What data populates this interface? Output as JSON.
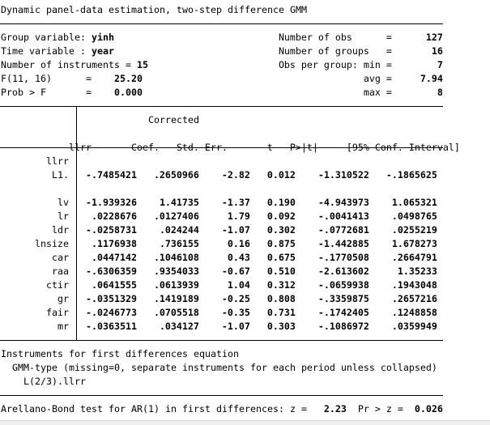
{
  "title": "Dynamic panel-data estimation, two-step difference GMM",
  "header_left": [
    {
      "label": "Group variable: ",
      "value": "yinh"
    },
    {
      "label": "Time variable : ",
      "value": "year"
    },
    {
      "label": "Number of instruments = ",
      "value": "15"
    },
    {
      "label": "F(11, 16)      =",
      "value": "25.20"
    },
    {
      "label": "Prob > F       =",
      "value": "0.000"
    }
  ],
  "header_right": [
    {
      "label": "Number of obs      =",
      "value": "127"
    },
    {
      "label": "Number of groups   =",
      "value": "16"
    },
    {
      "label": "Obs per group: min =",
      "value": "7"
    },
    {
      "label": "avg =",
      "value": "7.94"
    },
    {
      "label": "max =",
      "value": "8"
    }
  ],
  "table": {
    "header_top": "Corrected",
    "depvar": "llrr",
    "columns": [
      "Coef.",
      "Std. Err.",
      "t",
      "P>|t|",
      "[95% Conf. Interval]"
    ],
    "group_label": "llrr",
    "rows": [
      {
        "name": "L1.",
        "coef": "-.7485421",
        "se": ".2650966",
        "t": "-2.82",
        "p": "0.012",
        "lo": "-1.310522",
        "hi": "-.1865625"
      },
      {
        "name": "lv",
        "coef": "-1.939326",
        "se": "1.41735",
        "t": "-1.37",
        "p": "0.190",
        "lo": "-4.943973",
        "hi": "1.065321"
      },
      {
        "name": "lr",
        "coef": ".0228676",
        "se": ".0127406",
        "t": "1.79",
        "p": "0.092",
        "lo": "-.0041413",
        "hi": ".0498765"
      },
      {
        "name": "ldr",
        "coef": "-.0258731",
        "se": ".024244",
        "t": "-1.07",
        "p": "0.302",
        "lo": "-.0772681",
        "hi": ".0255219"
      },
      {
        "name": "lnsize",
        "coef": ".1176938",
        "se": ".736155",
        "t": "0.16",
        "p": "0.875",
        "lo": "-1.442885",
        "hi": "1.678273"
      },
      {
        "name": "car",
        "coef": ".0447142",
        "se": ".1046108",
        "t": "0.43",
        "p": "0.675",
        "lo": "-.1770508",
        "hi": ".2664791"
      },
      {
        "name": "raa",
        "coef": "-.6306359",
        "se": ".9354033",
        "t": "-0.67",
        "p": "0.510",
        "lo": "-2.613602",
        "hi": "1.35233"
      },
      {
        "name": "ctir",
        "coef": ".0641555",
        "se": ".0613939",
        "t": "1.04",
        "p": "0.312",
        "lo": "-.0659938",
        "hi": ".1943048"
      },
      {
        "name": "gr",
        "coef": "-.0351329",
        "se": ".1419189",
        "t": "-0.25",
        "p": "0.808",
        "lo": "-.3359875",
        "hi": ".2657216"
      },
      {
        "name": "fair",
        "coef": "-.0246773",
        "se": ".0705518",
        "t": "-0.35",
        "p": "0.731",
        "lo": "-.1742405",
        "hi": ".1248858"
      },
      {
        "name": "mr",
        "coef": "-.0363511",
        "se": ".034127",
        "t": "-1.07",
        "p": "0.303",
        "lo": "-.1086972",
        "hi": ".0359949"
      }
    ]
  },
  "instruments": {
    "heading": "Instruments for first differences equation",
    "gmm_type": "  GMM-type (missing=0, separate instruments for each period unless collapsed)",
    "lags": "    L(2/3).llrr"
  },
  "ar_test": {
    "label": "Arellano-Bond test for AR(1) in first differences: z = ",
    "z": "2.23",
    "p_label": "Pr > z = ",
    "p": "0.026"
  }
}
